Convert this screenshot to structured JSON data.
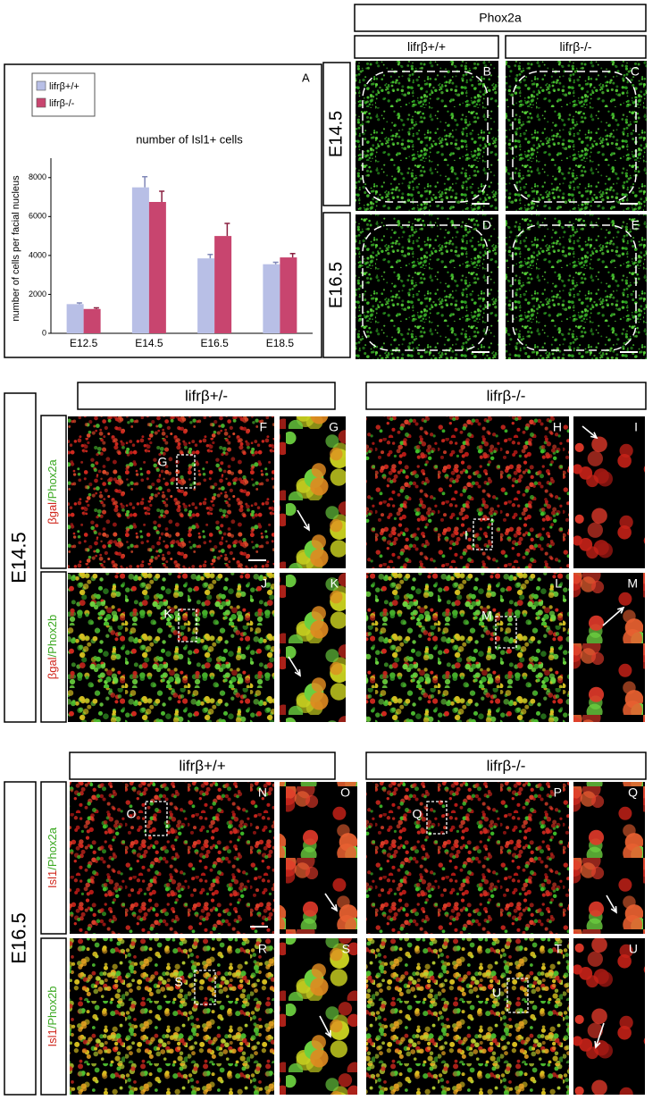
{
  "chart_data": {
    "type": "bar",
    "panel_label": "A",
    "title": "number of Isl1+ cells",
    "y_label": "number of cells per facial nucleus",
    "categories": [
      "E12.5",
      "E14.5",
      "E16.5",
      "E18.5"
    ],
    "series": [
      {
        "name": "lifrβ+/+",
        "color": "#b8bfe6",
        "values": [
          1500,
          7500,
          3850,
          3550
        ],
        "errors": [
          60,
          550,
          200,
          100
        ]
      },
      {
        "name": "lifrβ-/-",
        "color": "#c8456f",
        "values": [
          1250,
          6750,
          5000,
          3900
        ],
        "errors": [
          60,
          550,
          650,
          200
        ]
      }
    ],
    "ylim": [
      0,
      9000
    ],
    "yticks": [
      0,
      2000,
      4000,
      6000,
      8000
    ]
  },
  "figure": {
    "top": {
      "header": "Phox2a",
      "genotypes": [
        "lifrβ+/+",
        "lifrβ-/-"
      ],
      "stages": [
        "E14.5",
        "E16.5"
      ],
      "panels": [
        "B",
        "C",
        "D",
        "E"
      ]
    },
    "middle": {
      "stage": "E14.5",
      "genotypes": [
        "lifrβ+/-",
        "lifrβ-/-"
      ],
      "stains": [
        [
          "βgal",
          "/Phox2a"
        ],
        [
          "βgal",
          "/Phox2b"
        ]
      ],
      "panels": [
        "F",
        "G",
        "H",
        "I",
        "J",
        "K",
        "L",
        "M"
      ],
      "boxes": [
        "G",
        "I",
        "K",
        "M"
      ]
    },
    "bottom": {
      "stage": "E16.5",
      "genotypes": [
        "lifrβ+/+",
        "lifrβ-/-"
      ],
      "stains": [
        [
          "Isl1",
          "/Phox2a"
        ],
        [
          "Isl1",
          "/Phox2b"
        ]
      ],
      "panels": [
        "N",
        "O",
        "P",
        "Q",
        "R",
        "S",
        "T",
        "U"
      ],
      "boxes": [
        "O",
        "Q",
        "S",
        "U"
      ]
    }
  }
}
